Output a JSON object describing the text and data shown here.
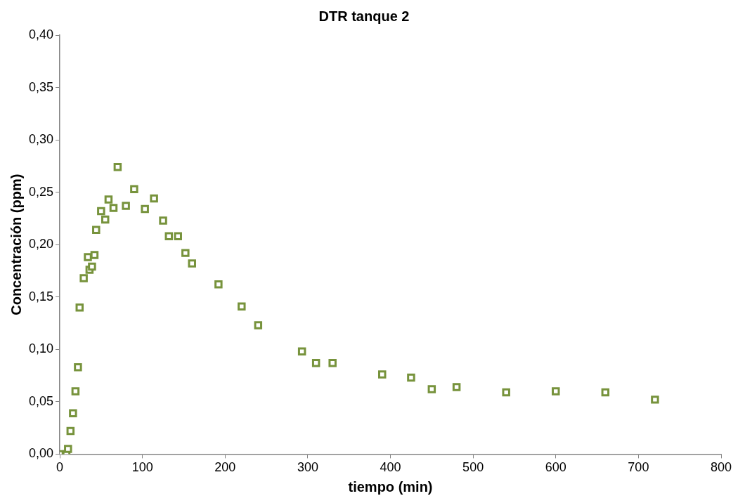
{
  "chart_data": {
    "type": "scatter",
    "title": "DTR tanque 2",
    "xlabel": "tiempo (min)",
    "ylabel": "Concentración (ppm)",
    "x": [
      0,
      8,
      10,
      13,
      16,
      19,
      22,
      24,
      29,
      34,
      36,
      39,
      42,
      44,
      50,
      55,
      59,
      65,
      70,
      80,
      90,
      103,
      114,
      125,
      132,
      143,
      152,
      160,
      192,
      220,
      240,
      293,
      310,
      330,
      390,
      425,
      450,
      480,
      540,
      600,
      660,
      720
    ],
    "series": [
      {
        "color": "#77933c",
        "values": [
          0,
          0,
          0.005,
          0.022,
          0.039,
          0.06,
          0.083,
          0.14,
          0.168,
          0.188,
          0.176,
          0.179,
          0.19,
          0.214,
          0.232,
          0.224,
          0.243,
          0.235,
          0.274,
          0.237,
          0.253,
          0.234,
          0.244,
          0.223,
          0.208,
          0.208,
          0.192,
          0.182,
          0.162,
          0.141,
          0.123,
          0.098,
          0.087,
          0.087,
          0.076,
          0.073,
          0.062,
          0.064,
          0.059,
          0.06,
          0.059,
          0.052
        ]
      }
    ],
    "xlim": [
      0,
      800
    ],
    "xticks": [
      0,
      100,
      200,
      300,
      400,
      500,
      600,
      700,
      800
    ],
    "ylim": [
      0,
      0.4
    ],
    "yticks": [
      {
        "value": 0,
        "label": "0,00"
      },
      {
        "value": 0.05,
        "label": "0,05"
      },
      {
        "value": 0.1,
        "label": "0,10"
      },
      {
        "value": 0.15,
        "label": "0,15"
      },
      {
        "value": 0.2,
        "label": "0,20"
      },
      {
        "value": 0.25,
        "label": "0,25"
      },
      {
        "value": 0.3,
        "label": "0,30"
      },
      {
        "value": 0.35,
        "label": "0,35"
      },
      {
        "value": 0.4,
        "label": "0,40"
      }
    ],
    "grid": false,
    "legend": false,
    "marker": "square"
  }
}
